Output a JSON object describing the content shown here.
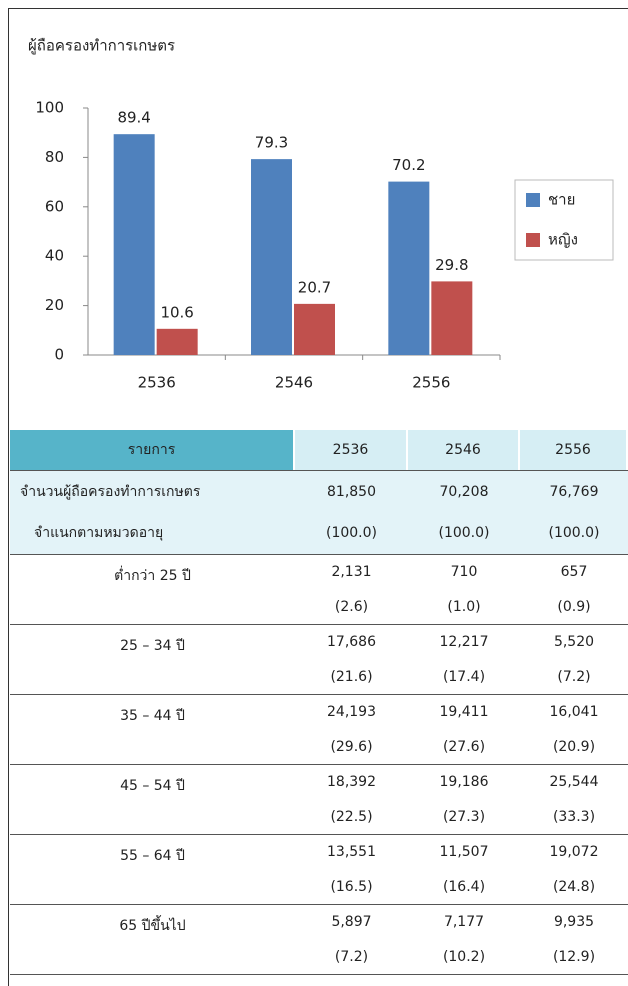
{
  "chart_data": {
    "type": "bar",
    "title": "ผู้ถือครองทำการเกษตร",
    "categories": [
      "2536",
      "2546",
      "2556"
    ],
    "series": [
      {
        "name": "ชาย",
        "color": "#4f81bd",
        "values": [
          89.4,
          79.3,
          70.2
        ]
      },
      {
        "name": "หญิง",
        "color": "#c0504d",
        "values": [
          10.6,
          20.7,
          29.8
        ]
      }
    ],
    "ylim": [
      0,
      100
    ],
    "yticks": [
      0,
      20,
      40,
      60,
      80,
      100
    ],
    "legend": "right"
  },
  "table": {
    "header": [
      "รายการ",
      "2536",
      "2546",
      "2556"
    ],
    "rows": [
      {
        "label": [
          "จำนวนผู้ถือครองทำการเกษตร",
          "จำแนกตามหมวดอายุ"
        ],
        "cells": [
          [
            "81,850",
            "(100.0)"
          ],
          [
            "70,208",
            "(100.0)"
          ],
          [
            "76,769",
            "(100.0)"
          ]
        ]
      },
      {
        "label": [
          "ต่ำกว่า 25 ปี"
        ],
        "cells": [
          [
            "2,131",
            "(2.6)"
          ],
          [
            "710",
            "(1.0)"
          ],
          [
            "657",
            "(0.9)"
          ]
        ]
      },
      {
        "label": [
          "25 – 34 ปี"
        ],
        "cells": [
          [
            "17,686",
            "(21.6)"
          ],
          [
            "12,217",
            "(17.4)"
          ],
          [
            "5,520",
            "(7.2)"
          ]
        ]
      },
      {
        "label": [
          "35 – 44 ปี"
        ],
        "cells": [
          [
            "24,193",
            "(29.6)"
          ],
          [
            "19,411",
            "(27.6)"
          ],
          [
            "16,041",
            "(20.9)"
          ]
        ]
      },
      {
        "label": [
          "45 – 54 ปี"
        ],
        "cells": [
          [
            "18,392",
            "(22.5)"
          ],
          [
            "19,186",
            "(27.3)"
          ],
          [
            "25,544",
            "(33.3)"
          ]
        ]
      },
      {
        "label": [
          "55 – 64 ปี"
        ],
        "cells": [
          [
            "13,551",
            "(16.5)"
          ],
          [
            "11,507",
            "(16.4)"
          ],
          [
            "19,072",
            "(24.8)"
          ]
        ]
      },
      {
        "label": [
          "65 ปีขึ้นไป"
        ],
        "cells": [
          [
            "5,897",
            "(7.2)"
          ],
          [
            "7,177",
            "(10.2)"
          ],
          [
            "9,935",
            "(12.9)"
          ]
        ]
      }
    ]
  }
}
